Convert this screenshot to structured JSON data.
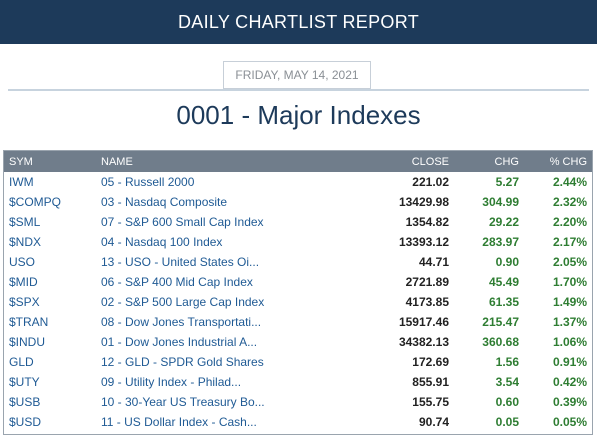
{
  "header": {
    "title": "DAILY CHARTLIST REPORT"
  },
  "report": {
    "date": "FRIDAY, MAY 14, 2021",
    "title": "0001 - Major Indexes"
  },
  "colors": {
    "banner": "#1d3a5a",
    "table_header": "#707d8b",
    "link": "#1f5a94",
    "positive": "#2e7d32"
  },
  "table": {
    "columns": [
      "SYM",
      "NAME",
      "CLOSE",
      "CHG",
      "% CHG"
    ],
    "rows": [
      {
        "sym": "IWM",
        "name": "05 - Russell 2000",
        "close": "221.02",
        "chg": "5.27",
        "pct": "2.44%"
      },
      {
        "sym": "$COMPQ",
        "name": "03 - Nasdaq Composite",
        "close": "13429.98",
        "chg": "304.99",
        "pct": "2.32%"
      },
      {
        "sym": "$SML",
        "name": "07 - S&P 600 Small Cap Index",
        "close": "1354.82",
        "chg": "29.22",
        "pct": "2.20%"
      },
      {
        "sym": "$NDX",
        "name": "04 - Nasdaq 100 Index",
        "close": "13393.12",
        "chg": "283.97",
        "pct": "2.17%"
      },
      {
        "sym": "USO",
        "name": "13 - USO - United States Oi...",
        "close": "44.71",
        "chg": "0.90",
        "pct": "2.05%"
      },
      {
        "sym": "$MID",
        "name": "06 - S&P 400 Mid Cap Index",
        "close": "2721.89",
        "chg": "45.49",
        "pct": "1.70%"
      },
      {
        "sym": "$SPX",
        "name": "02 - S&P 500 Large Cap Index",
        "close": "4173.85",
        "chg": "61.35",
        "pct": "1.49%"
      },
      {
        "sym": "$TRAN",
        "name": "08 - Dow Jones Transportati...",
        "close": "15917.46",
        "chg": "215.47",
        "pct": "1.37%"
      },
      {
        "sym": "$INDU",
        "name": "01 - Dow Jones Industrial A...",
        "close": "34382.13",
        "chg": "360.68",
        "pct": "1.06%"
      },
      {
        "sym": "GLD",
        "name": "12 - GLD - SPDR Gold Shares",
        "close": "172.69",
        "chg": "1.56",
        "pct": "0.91%"
      },
      {
        "sym": "$UTY",
        "name": "09 - Utility Index - Philad...",
        "close": "855.91",
        "chg": "3.54",
        "pct": "0.42%"
      },
      {
        "sym": "$USB",
        "name": "10 - 30-Year US Treasury Bo...",
        "close": "155.75",
        "chg": "0.60",
        "pct": "0.39%"
      },
      {
        "sym": "$USD",
        "name": "11 - US Dollar Index - Cash...",
        "close": "90.74",
        "chg": "0.05",
        "pct": "0.05%"
      }
    ]
  }
}
